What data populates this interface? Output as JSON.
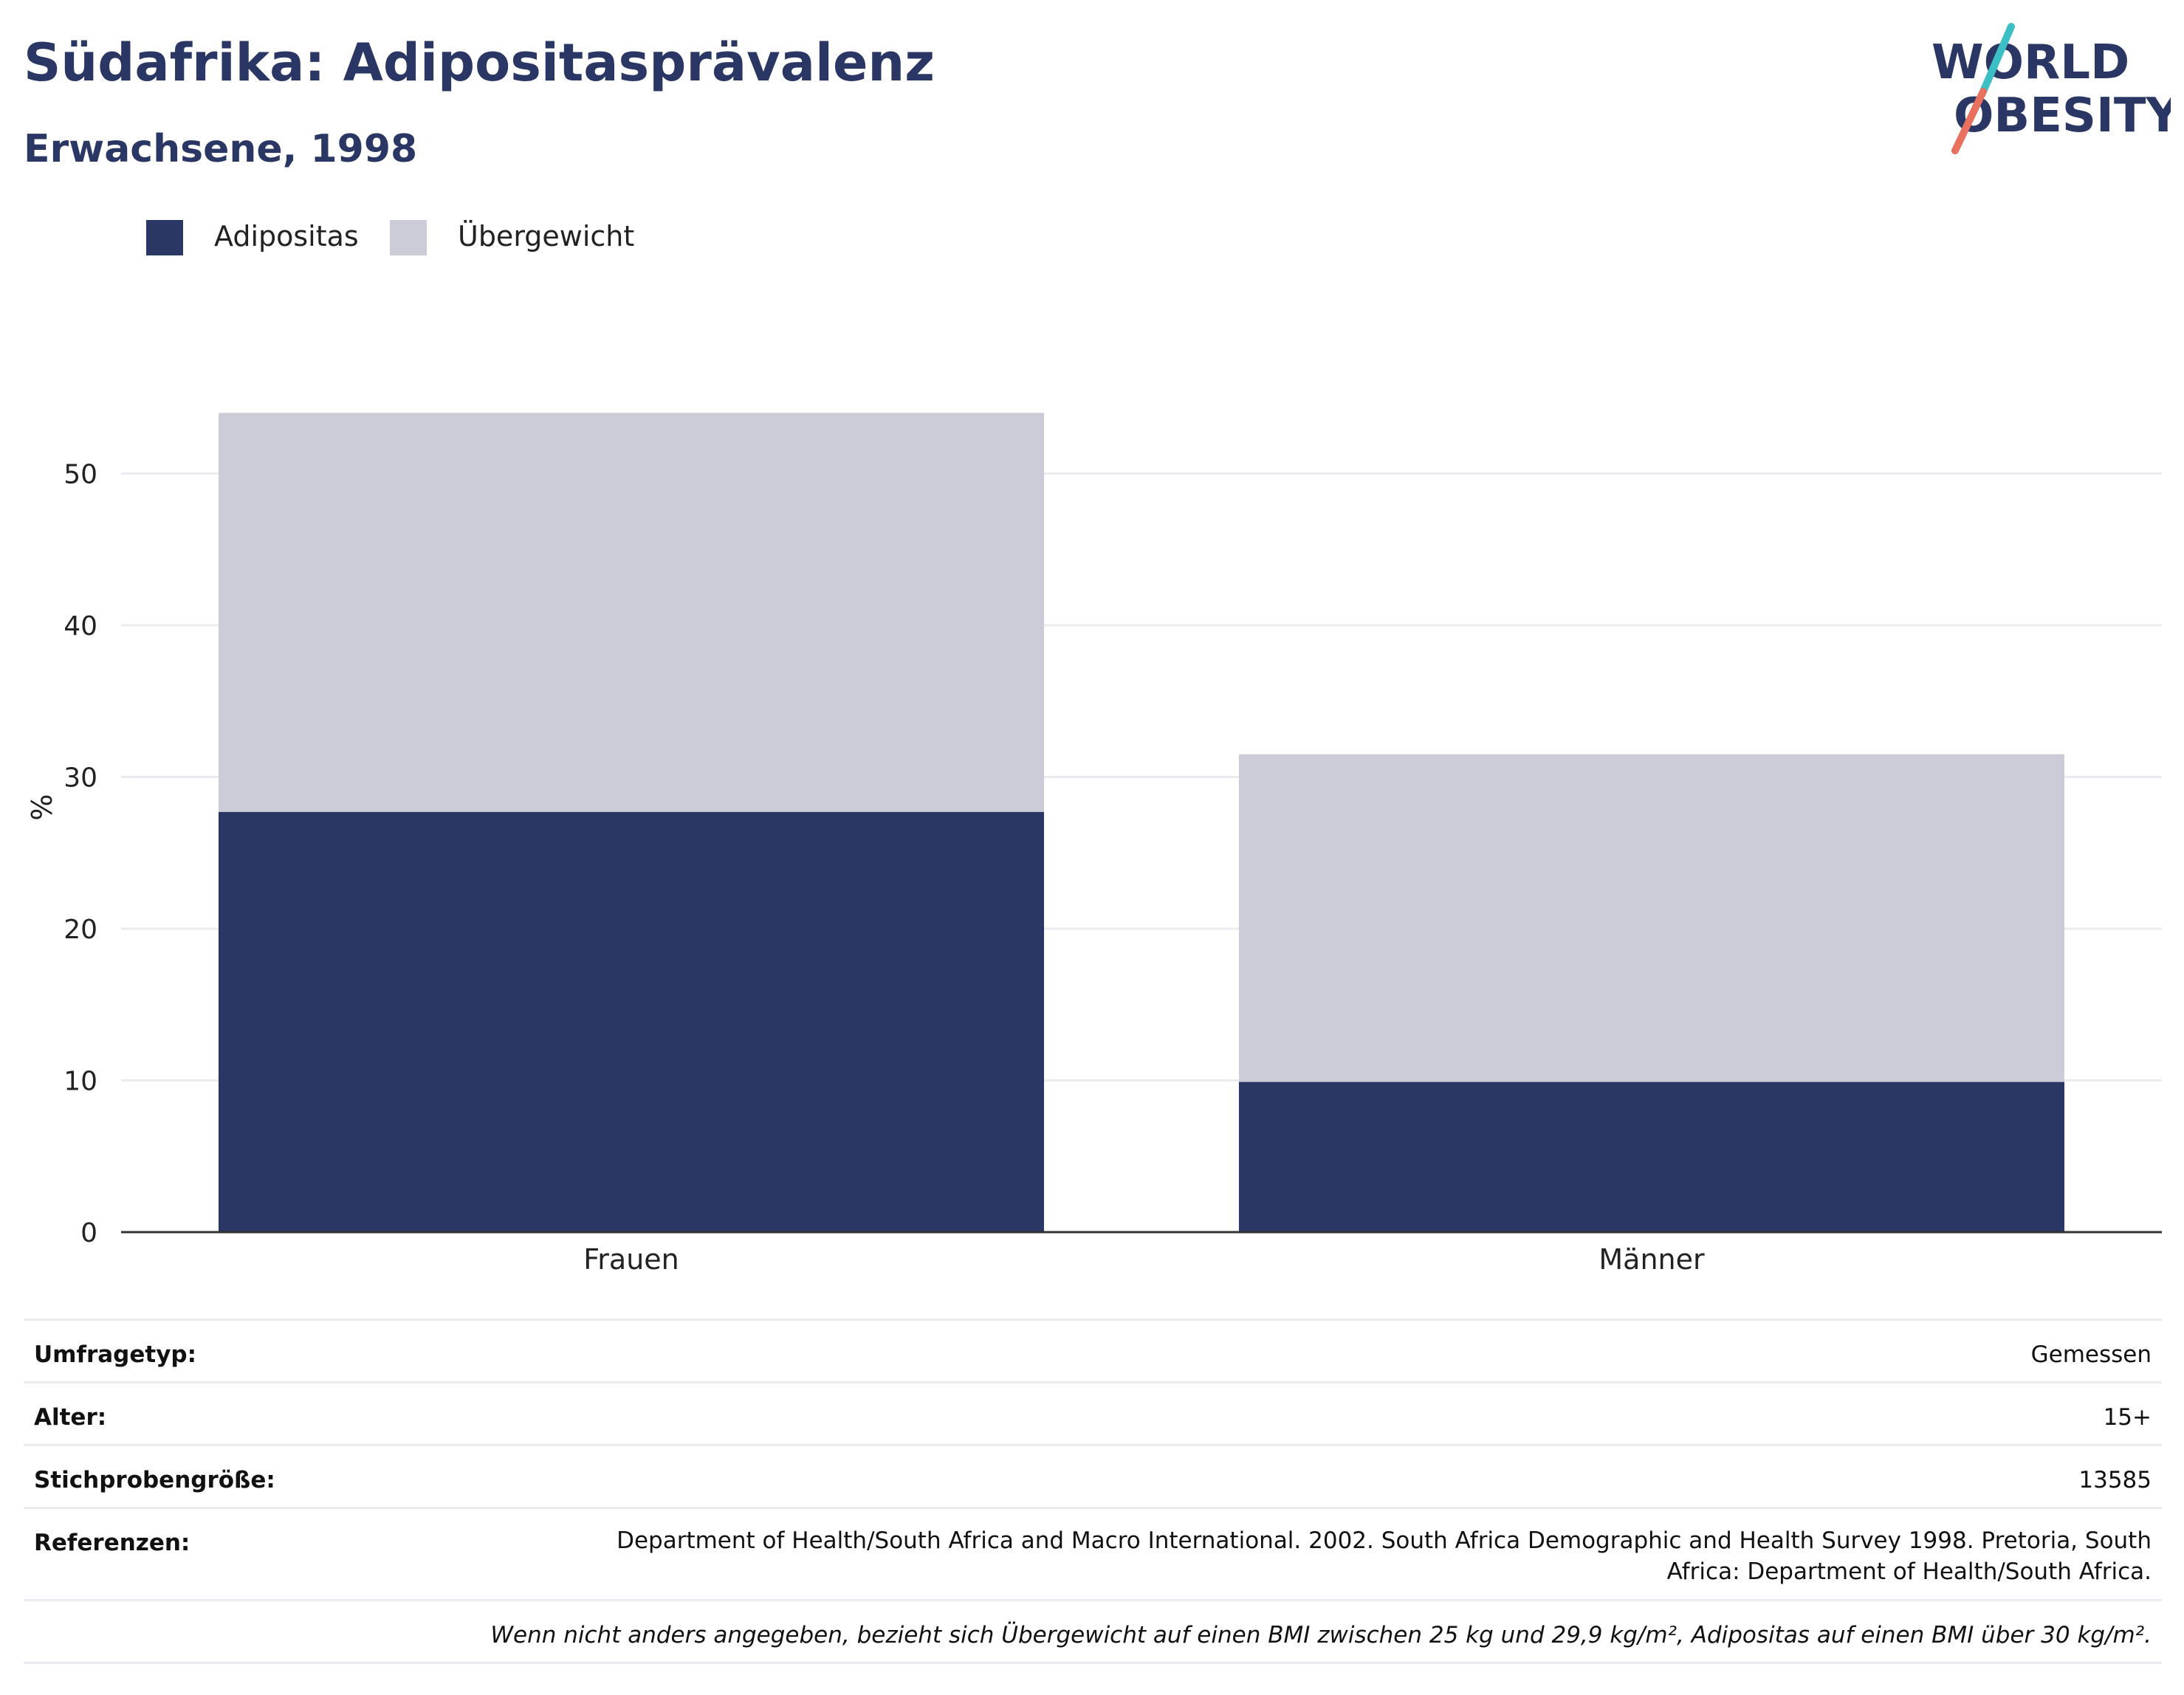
{
  "header": {
    "title": "Südafrika: Adipositasprävalenz",
    "subtitle": "Erwachsene, 1998"
  },
  "logo": {
    "line1": "WORLD",
    "line2": "OBESITY",
    "colors": {
      "text": "#2a3663",
      "teal": "#3bbfc4",
      "coral": "#e8705f"
    }
  },
  "colors": {
    "obesity": "#2a3663",
    "overweight": "#cbccd7",
    "grid": "#ebebf0",
    "axis": "#333333"
  },
  "legend": {
    "items": [
      {
        "label": "Adipositas",
        "color": "#2a3663"
      },
      {
        "label": "Übergewicht",
        "color": "#cbccd7"
      }
    ]
  },
  "chart_data": {
    "type": "bar",
    "stacked": true,
    "categories": [
      "Frauen",
      "Männer"
    ],
    "series": [
      {
        "name": "Adipositas",
        "values": [
          27.7,
          9.9
        ]
      },
      {
        "name": "Übergewicht",
        "values": [
          26.3,
          21.6
        ]
      }
    ],
    "ylabel": "%",
    "ylim": [
      0,
      56
    ],
    "yticks": [
      0,
      10,
      20,
      30,
      40,
      50
    ],
    "grid": true,
    "legend_position": "top-left"
  },
  "info": {
    "rows": [
      {
        "label": "Umfragetyp:",
        "value": "Gemessen"
      },
      {
        "label": "Alter:",
        "value": "15+"
      },
      {
        "label": "Stichprobengröße:",
        "value": "13585"
      },
      {
        "label": "Referenzen:",
        "value": "Department of Health/South Africa and Macro International. 2002. South Africa Demographic and Health Survey 1998. Pretoria, South Africa: Department of Health/South Africa."
      }
    ],
    "note": "Wenn nicht anders angegeben, bezieht sich Übergewicht auf einen BMI zwischen 25 kg und 29,9 kg/m², Adipositas auf einen BMI über 30 kg/m²."
  }
}
